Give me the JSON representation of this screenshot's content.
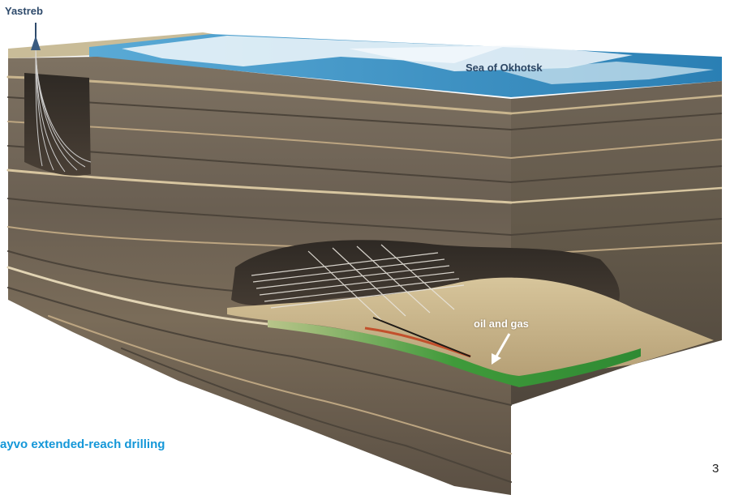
{
  "labels": {
    "rig": "Yastreb",
    "sea": "Sea of Okhotsk",
    "reservoir": "oil and gas"
  },
  "caption": "ayvo extended-reach drilling",
  "page_number": "3",
  "icons": {
    "rig": "drilling-rig-icon",
    "arrow": "arrow-down-left-icon"
  },
  "colors": {
    "sea": "#2f8fc4",
    "ice": "#e6f2f8",
    "rock_dark": "#5d5448",
    "rock_mid": "#8a7c69",
    "rock_light": "#c3b08c",
    "reservoir": "#3f9a3a",
    "caption": "#1497d8"
  }
}
